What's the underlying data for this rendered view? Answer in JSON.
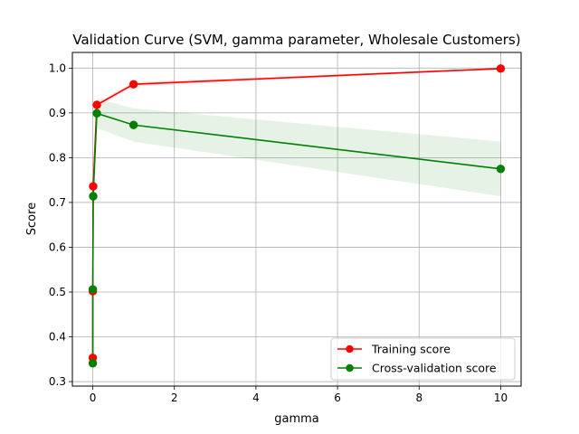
{
  "chart_data": {
    "type": "line",
    "title": "Validation Curve (SVM, gamma parameter, Wholesale Customers)",
    "xlabel": "gamma",
    "ylabel": "Score",
    "xlim": [
      -0.5,
      10.5
    ],
    "ylim": [
      0.29,
      1.035
    ],
    "xticks": [
      0,
      2,
      4,
      6,
      8,
      10
    ],
    "yticks": [
      0.3,
      0.4,
      0.5,
      0.6,
      0.7,
      0.8,
      0.9,
      1.0
    ],
    "xtick_labels": [
      "0",
      "2",
      "4",
      "6",
      "8",
      "10"
    ],
    "ytick_labels": [
      "0.3",
      "0.4",
      "0.5",
      "0.6",
      "0.7",
      "0.8",
      "0.9",
      "1.0"
    ],
    "grid": true,
    "legend_position": "lower-right",
    "x": [
      0.0001,
      0.001,
      0.01,
      0.1,
      1,
      10
    ],
    "series": [
      {
        "name": "Training score",
        "color": "#ff0000",
        "marker": "circle",
        "values": [
          0.353,
          0.502,
          0.736,
          0.918,
          0.964,
          0.999
        ],
        "band_lower": [
          0.35,
          0.499,
          0.733,
          0.913,
          0.959,
          0.997
        ],
        "band_upper": [
          0.356,
          0.505,
          0.739,
          0.923,
          0.969,
          1.0
        ]
      },
      {
        "name": "Cross-validation score",
        "color": "#008000",
        "marker": "circle",
        "values": [
          0.341,
          0.506,
          0.714,
          0.899,
          0.873,
          0.775
        ],
        "band_lower": [
          0.336,
          0.499,
          0.708,
          0.866,
          0.836,
          0.714
        ],
        "band_upper": [
          0.346,
          0.513,
          0.72,
          0.932,
          0.91,
          0.836
        ]
      }
    ]
  }
}
